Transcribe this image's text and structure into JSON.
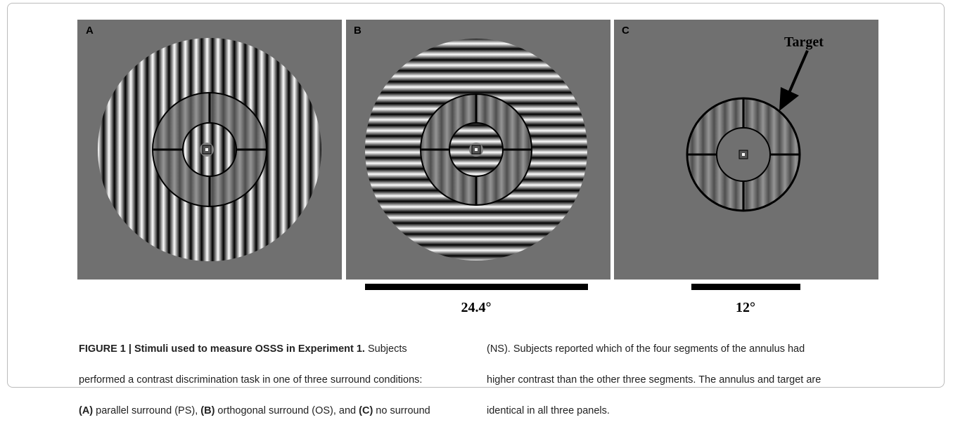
{
  "panels": [
    {
      "label": "A"
    },
    {
      "label": "B"
    },
    {
      "label": "C",
      "annotation": "Target"
    }
  ],
  "scale_bars": [
    "24.4°",
    "12°"
  ],
  "caption": {
    "left": [
      [
        "FIGURE 1 | Stimuli used to measure OSSS in Experiment 1.",
        " Subjects"
      ],
      [
        "performed a contrast discrimination task in one of three surround conditions:"
      ],
      [
        "(A)",
        " parallel surround (PS), ",
        "(B)",
        " orthogonal surround (OS), and ",
        "(C)",
        " no surround"
      ]
    ],
    "right": [
      [
        "(NS). Subjects reported which of the four segments of the annulus had"
      ],
      [
        "higher contrast than the other three segments. The annulus and target are"
      ],
      [
        "identical in all three panels."
      ]
    ]
  }
}
